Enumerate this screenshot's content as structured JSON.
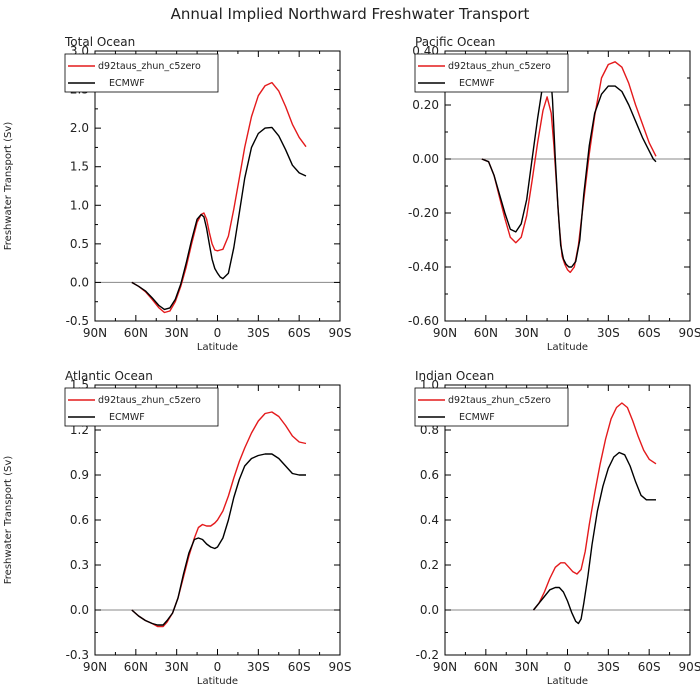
{
  "figure_title": "Annual Implied Northward Freshwater Transport",
  "chart_data": [
    {
      "type": "line",
      "title": "Total Ocean",
      "xlabel": "Latitude",
      "ylabel": "Freshwater Transport (Sv)",
      "xlim": [
        -90,
        90
      ],
      "ylim": [
        -0.5,
        3.0
      ],
      "x_ticks": [
        -90,
        -60,
        -30,
        0,
        30,
        60,
        90
      ],
      "x_tick_labels": [
        "90N",
        "60N",
        "30N",
        "0",
        "30S",
        "60S",
        "90S"
      ],
      "y_ticks": [
        -0.5,
        0.0,
        0.5,
        1.0,
        1.5,
        2.0,
        2.5,
        3.0
      ],
      "y_tick_labels": [
        "-0.5",
        "0.0",
        "0.5",
        "1.0",
        "1.5",
        "2.0",
        "2.5",
        "3.0"
      ],
      "zero_line": true,
      "legend_position": "top-left",
      "series": [
        {
          "name": "d92taus_zhun_c5zero",
          "color": "#e41a1c",
          "x": [
            -63,
            -58,
            -53,
            -48,
            -43,
            -39,
            -35,
            -31,
            -27,
            -23,
            -19,
            -15,
            -12,
            -10,
            -8,
            -6,
            -4,
            -2,
            0,
            2,
            4,
            8,
            12,
            16,
            20,
            25,
            30,
            35,
            40,
            45,
            50,
            55,
            60,
            65
          ],
          "y": [
            0.0,
            -0.05,
            -0.12,
            -0.22,
            -0.33,
            -0.39,
            -0.37,
            -0.25,
            -0.05,
            0.2,
            0.5,
            0.78,
            0.88,
            0.9,
            0.82,
            0.65,
            0.5,
            0.42,
            0.41,
            0.42,
            0.43,
            0.6,
            0.95,
            1.35,
            1.75,
            2.15,
            2.42,
            2.55,
            2.59,
            2.48,
            2.28,
            2.05,
            1.88,
            1.76
          ]
        },
        {
          "name": "ECMWF",
          "color": "#000000",
          "x": [
            -63,
            -58,
            -53,
            -48,
            -43,
            -39,
            -35,
            -31,
            -27,
            -23,
            -19,
            -15,
            -12,
            -10,
            -8,
            -6,
            -4,
            -2,
            0,
            2,
            4,
            8,
            12,
            16,
            20,
            25,
            30,
            35,
            40,
            45,
            50,
            55,
            60,
            65
          ],
          "y": [
            0.0,
            -0.05,
            -0.11,
            -0.2,
            -0.3,
            -0.35,
            -0.33,
            -0.22,
            -0.02,
            0.25,
            0.55,
            0.82,
            0.88,
            0.85,
            0.7,
            0.5,
            0.3,
            0.18,
            0.12,
            0.07,
            0.05,
            0.12,
            0.45,
            0.9,
            1.35,
            1.75,
            1.93,
            2.0,
            2.01,
            1.9,
            1.72,
            1.52,
            1.42,
            1.38
          ]
        }
      ]
    },
    {
      "type": "line",
      "title": "Pacific Ocean",
      "xlabel": "Latitude",
      "ylabel": "",
      "xlim": [
        -90,
        90
      ],
      "ylim": [
        -0.6,
        0.4
      ],
      "x_ticks": [
        -90,
        -60,
        -30,
        0,
        30,
        60,
        90
      ],
      "x_tick_labels": [
        "90N",
        "60N",
        "30N",
        "0",
        "30S",
        "60S",
        "90S"
      ],
      "y_ticks": [
        -0.6,
        -0.4,
        -0.2,
        0.0,
        0.2,
        0.4
      ],
      "y_tick_labels": [
        "-0.60",
        "-0.40",
        "-0.20",
        "0.00",
        "0.20",
        "0.40"
      ],
      "zero_line": true,
      "legend_position": "top-left",
      "series": [
        {
          "name": "d92taus_zhun_c5zero",
          "color": "#e41a1c",
          "x": [
            -63,
            -58,
            -54,
            -50,
            -46,
            -42,
            -38,
            -34,
            -30,
            -26,
            -22,
            -18,
            -15,
            -12,
            -10,
            -8,
            -6,
            -4,
            -2,
            0,
            2,
            5,
            8,
            12,
            16,
            20,
            25,
            30,
            35,
            40,
            45,
            50,
            55,
            60,
            65
          ],
          "y": [
            0.0,
            -0.01,
            -0.06,
            -0.14,
            -0.22,
            -0.29,
            -0.31,
            -0.29,
            -0.21,
            -0.08,
            0.06,
            0.18,
            0.23,
            0.17,
            0.05,
            -0.1,
            -0.25,
            -0.36,
            -0.39,
            -0.41,
            -0.42,
            -0.4,
            -0.32,
            -0.15,
            0.02,
            0.16,
            0.3,
            0.35,
            0.36,
            0.34,
            0.28,
            0.2,
            0.13,
            0.06,
            0.01
          ]
        },
        {
          "name": "ECMWF",
          "color": "#000000",
          "x": [
            -63,
            -58,
            -54,
            -50,
            -46,
            -42,
            -38,
            -34,
            -30,
            -26,
            -22,
            -18,
            -15,
            -13,
            -11,
            -9,
            -7,
            -5,
            -3,
            -1,
            1,
            3,
            6,
            9,
            12,
            16,
            20,
            25,
            30,
            35,
            40,
            45,
            50,
            55,
            60,
            63,
            65
          ],
          "y": [
            0.0,
            -0.01,
            -0.06,
            -0.13,
            -0.2,
            -0.26,
            -0.27,
            -0.24,
            -0.15,
            0.0,
            0.15,
            0.28,
            0.36,
            0.35,
            0.22,
            0.0,
            -0.18,
            -0.32,
            -0.37,
            -0.39,
            -0.4,
            -0.4,
            -0.38,
            -0.3,
            -0.13,
            0.05,
            0.17,
            0.24,
            0.27,
            0.27,
            0.25,
            0.2,
            0.14,
            0.08,
            0.03,
            0.0,
            -0.01
          ]
        }
      ]
    },
    {
      "type": "line",
      "title": "Atlantic Ocean",
      "xlabel": "Latitude",
      "ylabel": "Freshwater Transport (Sv)",
      "xlim": [
        -90,
        90
      ],
      "ylim": [
        -0.3,
        1.5
      ],
      "x_ticks": [
        -90,
        -60,
        -30,
        0,
        30,
        60,
        90
      ],
      "x_tick_labels": [
        "90N",
        "60N",
        "30N",
        "0",
        "30S",
        "60S",
        "90S"
      ],
      "y_ticks": [
        -0.3,
        0.0,
        0.3,
        0.6,
        0.9,
        1.2,
        1.5
      ],
      "y_tick_labels": [
        "-0.3",
        "0.0",
        "0.3",
        "0.6",
        "0.9",
        "1.2",
        "1.5"
      ],
      "zero_line": true,
      "legend_position": "top-left",
      "series": [
        {
          "name": "d92taus_zhun_c5zero",
          "color": "#e41a1c",
          "x": [
            -63,
            -58,
            -53,
            -48,
            -44,
            -40,
            -37,
            -33,
            -29,
            -25,
            -21,
            -17,
            -14,
            -11,
            -8,
            -5,
            -2,
            0,
            4,
            8,
            12,
            16,
            20,
            25,
            30,
            35,
            40,
            45,
            50,
            55,
            60,
            65
          ],
          "y": [
            0.0,
            -0.04,
            -0.07,
            -0.09,
            -0.11,
            -0.11,
            -0.08,
            -0.02,
            0.08,
            0.22,
            0.36,
            0.48,
            0.55,
            0.57,
            0.56,
            0.56,
            0.58,
            0.6,
            0.66,
            0.76,
            0.88,
            0.99,
            1.08,
            1.18,
            1.26,
            1.31,
            1.32,
            1.29,
            1.23,
            1.16,
            1.12,
            1.11
          ]
        },
        {
          "name": "ECMWF",
          "color": "#000000",
          "x": [
            -63,
            -58,
            -53,
            -48,
            -44,
            -40,
            -37,
            -33,
            -29,
            -25,
            -21,
            -17,
            -14,
            -11,
            -8,
            -5,
            -2,
            0,
            4,
            8,
            12,
            16,
            20,
            25,
            30,
            35,
            40,
            45,
            50,
            55,
            60,
            65
          ],
          "y": [
            0.0,
            -0.04,
            -0.07,
            -0.09,
            -0.1,
            -0.1,
            -0.07,
            -0.02,
            0.08,
            0.24,
            0.38,
            0.47,
            0.48,
            0.47,
            0.44,
            0.42,
            0.41,
            0.42,
            0.48,
            0.6,
            0.75,
            0.87,
            0.96,
            1.01,
            1.03,
            1.04,
            1.04,
            1.01,
            0.96,
            0.91,
            0.9,
            0.9
          ]
        }
      ]
    },
    {
      "type": "line",
      "title": "Indian Ocean",
      "xlabel": "Latitude",
      "ylabel": "",
      "xlim": [
        -90,
        90
      ],
      "ylim": [
        -0.2,
        1.0
      ],
      "x_ticks": [
        -90,
        -60,
        -30,
        0,
        30,
        60,
        90
      ],
      "x_tick_labels": [
        "90N",
        "60N",
        "30N",
        "0",
        "30S",
        "60S",
        "90S"
      ],
      "y_ticks": [
        -0.2,
        0.0,
        0.2,
        0.4,
        0.6,
        0.8,
        1.0
      ],
      "y_tick_labels": [
        "-0.2",
        "0.0",
        "0.2",
        "0.4",
        "0.6",
        "0.8",
        "1.0"
      ],
      "zero_line": true,
      "legend_position": "top-left",
      "series": [
        {
          "name": "d92taus_zhun_c5zero",
          "color": "#e41a1c",
          "x": [
            -25,
            -21,
            -17,
            -13,
            -9,
            -5,
            -2,
            1,
            4,
            7,
            10,
            13,
            16,
            20,
            24,
            28,
            32,
            36,
            40,
            44,
            48,
            52,
            56,
            60,
            65
          ],
          "y": [
            0.0,
            0.03,
            0.08,
            0.14,
            0.19,
            0.21,
            0.21,
            0.19,
            0.17,
            0.16,
            0.18,
            0.26,
            0.38,
            0.52,
            0.65,
            0.76,
            0.85,
            0.9,
            0.92,
            0.9,
            0.84,
            0.77,
            0.71,
            0.67,
            0.65
          ]
        },
        {
          "name": "ECMWF",
          "color": "#000000",
          "x": [
            -25,
            -21,
            -17,
            -13,
            -9,
            -6,
            -3,
            0,
            3,
            6,
            8,
            10,
            12,
            15,
            18,
            22,
            26,
            30,
            34,
            38,
            42,
            46,
            50,
            54,
            58,
            62,
            65
          ],
          "y": [
            0.0,
            0.03,
            0.06,
            0.09,
            0.1,
            0.1,
            0.08,
            0.04,
            -0.01,
            -0.05,
            -0.06,
            -0.04,
            0.03,
            0.15,
            0.29,
            0.44,
            0.55,
            0.63,
            0.68,
            0.7,
            0.69,
            0.64,
            0.57,
            0.51,
            0.49,
            0.49,
            0.49
          ]
        }
      ]
    }
  ]
}
